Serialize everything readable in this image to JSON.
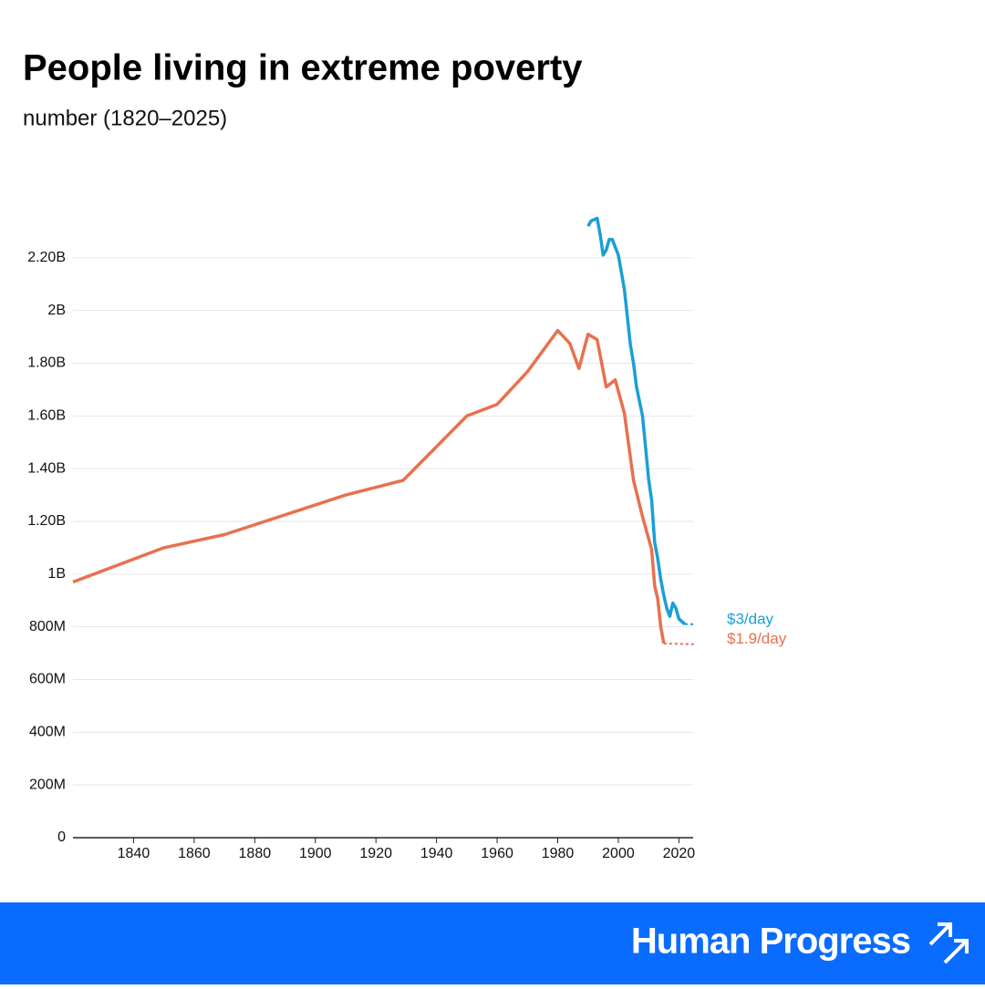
{
  "chart_data": {
    "type": "line",
    "title": "People living in extreme poverty",
    "subtitle": "number (1820–2025)",
    "xlim": [
      1820,
      2025
    ],
    "xticks": [
      1840,
      1860,
      1880,
      1900,
      1920,
      1940,
      1960,
      1980,
      2000,
      2020
    ],
    "ylim": [
      0,
      2400000000
    ],
    "yticks": [
      0,
      {
        "value": 200000000,
        "label": "200M"
      },
      {
        "value": 400000000,
        "label": "400M"
      },
      {
        "value": 600000000,
        "label": "600M"
      },
      {
        "value": 800000000,
        "label": "800M"
      },
      {
        "value": 1000000000,
        "label": "1B"
      },
      {
        "value": 1200000000,
        "label": "1.20B"
      },
      {
        "value": 1400000000,
        "label": "1.40B"
      },
      {
        "value": 1600000000,
        "label": "1.60B"
      },
      {
        "value": 1800000000,
        "label": "1.80B"
      },
      {
        "value": 2000000000,
        "label": "2B"
      },
      {
        "value": 2200000000,
        "label": "2.20B"
      }
    ],
    "grid": true,
    "series": [
      {
        "name": "$3/day",
        "color": "#1a9fd6",
        "dash_after": 2022,
        "x": [
          1990,
          1991,
          1993,
          1994,
          1995,
          1996,
          1997,
          1998,
          2000,
          2002,
          2004,
          2005,
          2006,
          2008,
          2010,
          2011,
          2012,
          2013,
          2014,
          2015,
          2016,
          2017,
          2018,
          2019,
          2020,
          2021,
          2022,
          2025
        ],
        "values": [
          2320000000,
          2340000000,
          2350000000,
          2290000000,
          2210000000,
          2230000000,
          2270000000,
          2270000000,
          2210000000,
          2080000000,
          1870000000,
          1800000000,
          1710000000,
          1600000000,
          1360000000,
          1280000000,
          1120000000,
          1060000000,
          980000000,
          920000000,
          870000000,
          840000000,
          890000000,
          870000000,
          830000000,
          820000000,
          810000000,
          810000000
        ]
      },
      {
        "name": "$1.9/day",
        "color": "#e8704f",
        "dash_after": 2015,
        "x": [
          1820,
          1850,
          1870,
          1910,
          1929,
          1950,
          1960,
          1970,
          1980,
          1984,
          1987,
          1990,
          1993,
          1996,
          1999,
          2002,
          2005,
          2008,
          2011,
          2012,
          2013,
          2014,
          2015,
          2025
        ],
        "values": [
          970000000,
          1100000000,
          1150000000,
          1300000000,
          1356000000,
          1600000000,
          1644000000,
          1768000000,
          1924000000,
          1875000000,
          1780000000,
          1910000000,
          1890000000,
          1710000000,
          1737000000,
          1610000000,
          1356000000,
          1218000000,
          1093000000,
          955000000,
          907000000,
          800000000,
          737000000,
          734000000
        ]
      }
    ]
  },
  "footer": {
    "brand": "Human Progress"
  }
}
